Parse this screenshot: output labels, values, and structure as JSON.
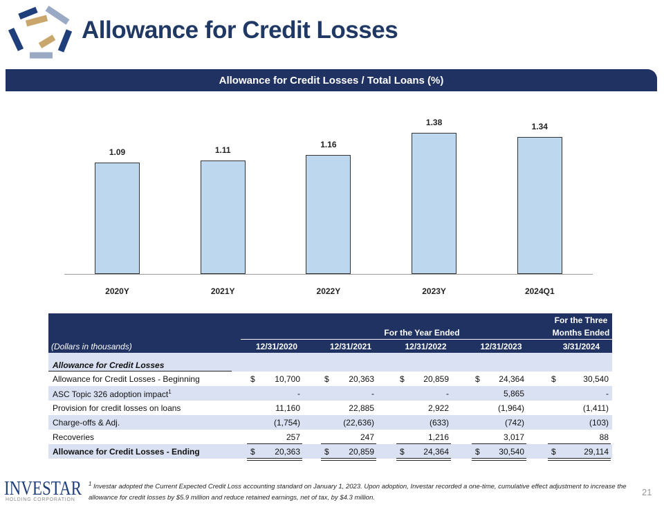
{
  "header": {
    "title": "Allowance for Credit Losses"
  },
  "banner": {
    "title": "Allowance for Credit Losses / Total Loans (%)"
  },
  "chart_data": {
    "type": "bar",
    "categories": [
      "2020Y",
      "2021Y",
      "2022Y",
      "2023Y",
      "2024Q1"
    ],
    "values": [
      1.09,
      1.11,
      1.16,
      1.38,
      1.34
    ],
    "value_labels": [
      "1.09",
      "1.11",
      "1.16",
      "1.38",
      "1.34"
    ],
    "bar_color": "#bdd7ee",
    "ylim": [
      0,
      1.4
    ],
    "grid": false
  },
  "table": {
    "group_year": "For the Year Ended",
    "group_three_line1": "For the Three",
    "group_three_line2": "Months Ended",
    "units": "(Dollars in thousands)",
    "columns": [
      "12/31/2020",
      "12/31/2021",
      "12/31/2022",
      "12/31/2023",
      "3/31/2024"
    ],
    "section": "Allowance for Credit Losses",
    "rows": [
      {
        "label": "Allowance for Credit Losses - Beginning",
        "dollar": "$",
        "values": [
          "10,700",
          "20,363",
          "20,859",
          "24,364",
          "30,540"
        ]
      },
      {
        "label": "ASC Topic 326 adoption impact",
        "sup": "1",
        "dollar": "",
        "values": [
          "-",
          "-",
          "-",
          "5,865",
          "-"
        ]
      },
      {
        "label": "Provision for credit losses on loans",
        "dollar": "",
        "values": [
          "11,160",
          "22,885",
          "2,922",
          "(1,964)",
          "(1,411)"
        ]
      },
      {
        "label": "Charge-offs & Adj.",
        "dollar": "",
        "values": [
          "(1,754)",
          "(22,636)",
          "(633)",
          "(742)",
          "(103)"
        ]
      },
      {
        "label": "Recoveries",
        "dollar": "",
        "values": [
          "257",
          "247",
          "1,216",
          "3,017",
          "88"
        ]
      },
      {
        "label": "Allowance for Credit Losses - Ending",
        "dollar": "$",
        "values": [
          "20,363",
          "20,859",
          "24,364",
          "30,540",
          "29,114"
        ]
      }
    ]
  },
  "footnote": {
    "marker": "1",
    "text": "Investar adopted the Current Expected Credit Loss accounting standard on January 1, 2023. Upon adoption, Investar recorded a one-time, cumulative effect adjustment to increase the allowance for credit losses by $5.9 million and reduce retained earnings, net of tax, by $4.3 million."
  },
  "logo": {
    "name": "INVESTAR",
    "sub": "HOLDING CORPORATION"
  },
  "page_number": "21"
}
